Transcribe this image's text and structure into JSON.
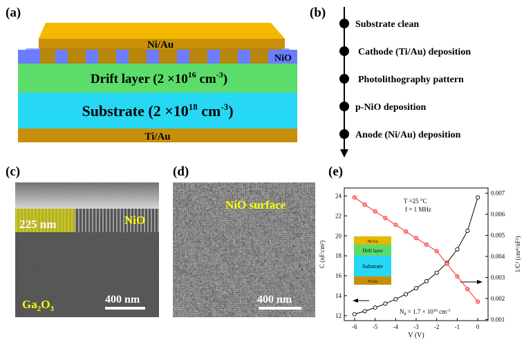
{
  "panel_labels": {
    "a": "(a)",
    "b": "(b)",
    "c": "(c)",
    "d": "(d)",
    "e": "(e)"
  },
  "device": {
    "top_contact": "Ni/Au",
    "nio": "NiO",
    "drift_prefix": "Drift layer (2 ×10",
    "drift_exp": "16",
    "drift_unit": " cm",
    "drift_unit_exp": "-3",
    "drift_suffix": ")",
    "substrate_prefix": "Substrate (2 ×10",
    "substrate_exp": "18",
    "substrate_unit": " cm",
    "substrate_unit_exp": "-3",
    "substrate_suffix": ")",
    "bottom_contact": "Ti/Au",
    "colors": {
      "gold": "#f5b800",
      "darkgold": "#b8860b",
      "nio": "#7b8cff",
      "drift": "#5cdc6a",
      "substrate": "#27d8f5"
    }
  },
  "process_steps": [
    "Substrate clean",
    "Cathode (Ti/Au) deposition",
    "Photolithography pattern",
    "p-NiO deposition",
    "Anode (Ni/Au) deposition"
  ],
  "sem_c": {
    "thickness": "225 nm",
    "layer": "NiO",
    "substrate": "Ga",
    "substrate_sub": "2",
    "substrate_o": "O",
    "substrate_sub2": "3",
    "scale": "400 nm"
  },
  "sem_d": {
    "title": "NiO surface",
    "scale": "400 nm"
  },
  "chart_data": {
    "type": "scatter",
    "xlabel": "V (V)",
    "ylabel_left": "C (nF/cm²)",
    "ylabel_right": "1/C² (cm⁴/nF²)",
    "xlim": [
      -6.5,
      0.5
    ],
    "ylim_left": [
      11.5,
      24.8
    ],
    "ylim_right": [
      0.00095,
      0.00725
    ],
    "x_ticks": [
      -6,
      -5,
      -4,
      -3,
      -2,
      -1,
      0
    ],
    "y_ticks_left": [
      12,
      14,
      16,
      18,
      20,
      22,
      24
    ],
    "y_ticks_right": [
      0.001,
      0.002,
      0.003,
      0.004,
      0.005,
      0.006,
      0.007
    ],
    "x": [
      -6,
      -5.5,
      -5,
      -4.5,
      -4,
      -3.5,
      -3,
      -2.5,
      -2,
      -1.5,
      -1,
      -0.5,
      0
    ],
    "series": [
      {
        "axis": "left",
        "color": "#000000",
        "values": [
          12.15,
          12.45,
          12.8,
          13.2,
          13.65,
          14.15,
          14.75,
          15.45,
          16.3,
          17.3,
          18.65,
          20.5,
          23.85
        ]
      },
      {
        "axis": "right",
        "color": "#ff2a2a",
        "values": [
          0.0068,
          0.00646,
          0.00614,
          0.00582,
          0.0055,
          0.00518,
          0.00487,
          0.00456,
          0.00425,
          0.00365,
          0.00305,
          0.00245,
          0.00185
        ]
      }
    ],
    "annotations": {
      "temp": "T =25 °C",
      "freq": "f = 1 MHz",
      "nd_prefix": "N",
      "nd_sub": "d",
      "nd_value": " = 1.7 × 10",
      "nd_exp": "16",
      "nd_unit": " cm",
      "nd_unit_exp": "-3"
    },
    "inset": {
      "top": "Ni/Au",
      "drift": "Drift layer",
      "substrate": "Substrate",
      "bottom": "Ti/Au"
    }
  }
}
